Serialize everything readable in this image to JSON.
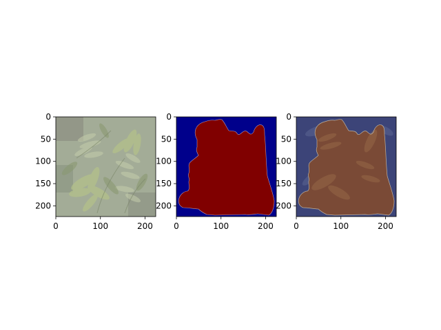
{
  "colors": {
    "figure_background": "#ffffff",
    "axis": "#000000",
    "mask_background": "#00008b",
    "mask_foreground": "#800000",
    "overlay_background": "#3c4478",
    "overlay_foreground": "#7a4a36",
    "photo_base": "#8f9a80",
    "leaf_light": "#9cad73",
    "leaf_mid": "#7d9162",
    "leaf_dark": "#5c6c4a"
  },
  "panels": [
    {
      "kind": "photo",
      "x_ticks": [
        "0",
        "100",
        "200"
      ],
      "y_ticks": [
        "0",
        "50",
        "100",
        "150",
        "200"
      ]
    },
    {
      "kind": "mask",
      "x_ticks": [
        "0",
        "100",
        "200"
      ],
      "y_ticks": [
        "0",
        "50",
        "100",
        "150",
        "200"
      ]
    },
    {
      "kind": "overlay",
      "x_ticks": [
        "0",
        "100",
        "200"
      ],
      "y_ticks": [
        "0",
        "50",
        "100",
        "150",
        "200"
      ]
    }
  ]
}
